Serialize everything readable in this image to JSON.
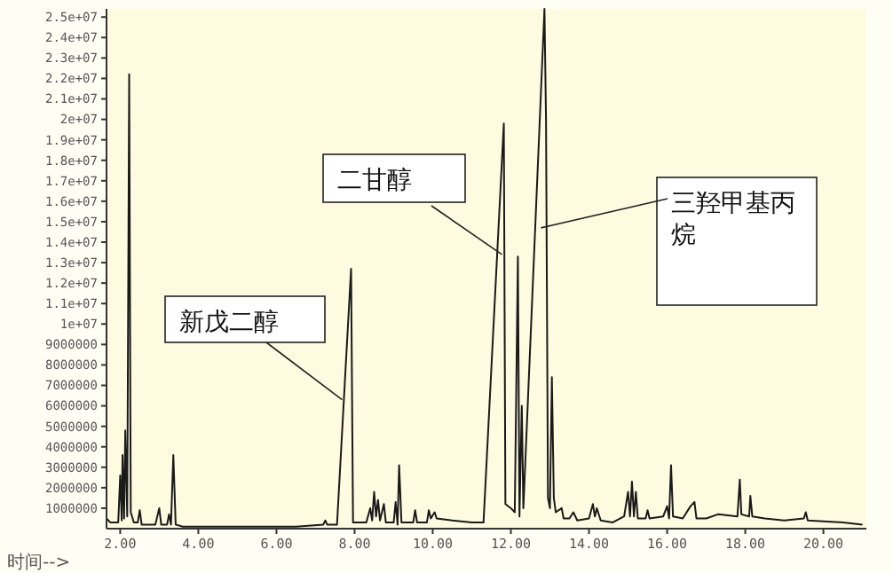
{
  "chart_data": {
    "type": "line",
    "xlabel": "时间-->",
    "xlim": [
      1.65,
      21.1
    ],
    "ylim": [
      0,
      25400000
    ],
    "xticks": [
      {
        "value": 2,
        "label": "2.00"
      },
      {
        "value": 4,
        "label": "4.00"
      },
      {
        "value": 6,
        "label": "6.00"
      },
      {
        "value": 8,
        "label": "8.00"
      },
      {
        "value": 10,
        "label": "10.00"
      },
      {
        "value": 12,
        "label": "12.00"
      },
      {
        "value": 14,
        "label": "14.00"
      },
      {
        "value": 16,
        "label": "16.00"
      },
      {
        "value": 18,
        "label": "18.00"
      },
      {
        "value": 20,
        "label": "20.00"
      }
    ],
    "yticks": [
      1000000,
      2000000,
      3000000,
      4000000,
      5000000,
      6000000,
      7000000,
      8000000,
      9000000,
      {
        "value": 10000000,
        "label": "1e+07"
      },
      {
        "value": 11000000,
        "label": "1.1e+07"
      },
      {
        "value": 12000000,
        "label": "1.2e+07"
      },
      {
        "value": 13000000,
        "label": "1.3e+07"
      },
      {
        "value": 14000000,
        "label": "1.4e+07"
      },
      {
        "value": 15000000,
        "label": "1.5e+07"
      },
      {
        "value": 16000000,
        "label": "1.6e+07"
      },
      {
        "value": 17000000,
        "label": "1.7e+07"
      },
      {
        "value": 18000000,
        "label": "1.8e+07"
      },
      {
        "value": 19000000,
        "label": "1.9e+07"
      },
      {
        "value": 20000000,
        "label": "2e+07"
      },
      {
        "value": 21000000,
        "label": "2.1e+07"
      },
      {
        "value": 22000000,
        "label": "2.2e+07"
      },
      {
        "value": 23000000,
        "label": "2.3e+07"
      },
      {
        "value": 24000000,
        "label": "2.4e+07"
      },
      {
        "value": 25000000,
        "label": "2.5e+07"
      }
    ],
    "grid": false,
    "marker": "none",
    "line_style": "solid",
    "annotations": [
      {
        "text": "新戊二醇",
        "x": 7.68,
        "y": 6300000
      },
      {
        "text": "二甘醇",
        "x": 11.77,
        "y": 13400000
      },
      {
        "text": "三羟甲基丙烷",
        "x": 12.77,
        "y": 14700000
      }
    ],
    "series": [
      {
        "color": "#1a1a1a",
        "x": [
          1.65,
          1.75,
          1.95,
          2.0,
          2.04,
          2.06,
          2.1,
          2.13,
          2.18,
          2.23,
          2.27,
          2.35,
          2.45,
          2.5,
          2.55,
          2.9,
          3.0,
          3.05,
          3.2,
          3.25,
          3.3,
          3.36,
          3.42,
          3.6,
          5.0,
          6.5,
          7.2,
          7.25,
          7.3,
          7.55,
          7.91,
          7.96,
          8.3,
          8.4,
          8.45,
          8.5,
          8.55,
          8.6,
          8.65,
          8.75,
          8.8,
          9.0,
          9.05,
          9.1,
          9.14,
          9.2,
          9.5,
          9.55,
          9.6,
          9.85,
          9.9,
          9.95,
          10.05,
          10.1,
          10.5,
          11.0,
          11.3,
          11.82,
          11.86,
          12.0,
          12.1,
          12.18,
          12.22,
          12.28,
          12.32,
          12.86,
          12.9,
          12.95,
          13.0,
          13.05,
          13.1,
          13.15,
          13.3,
          13.35,
          13.5,
          13.6,
          13.7,
          14.0,
          14.1,
          14.15,
          14.2,
          14.3,
          14.6,
          14.9,
          15.0,
          15.05,
          15.1,
          15.15,
          15.2,
          15.25,
          15.45,
          15.5,
          15.55,
          15.9,
          16.0,
          16.05,
          16.1,
          16.15,
          16.4,
          16.6,
          16.7,
          16.75,
          17.0,
          17.3,
          17.8,
          17.86,
          17.9,
          18.1,
          18.13,
          18.18,
          18.5,
          19.0,
          19.5,
          19.55,
          19.6,
          20.5,
          21.0
        ],
        "values": [
          500000,
          300000,
          300000,
          2600000,
          400000,
          3600000,
          500000,
          4800000,
          600000,
          22200000,
          800000,
          300000,
          300000,
          900000,
          200000,
          200000,
          1000000,
          200000,
          200000,
          700000,
          200000,
          3600000,
          200000,
          100000,
          100000,
          100000,
          200000,
          400000,
          200000,
          200000,
          12700000,
          300000,
          300000,
          1000000,
          400000,
          1800000,
          600000,
          1400000,
          400000,
          1200000,
          300000,
          300000,
          1300000,
          200000,
          3100000,
          300000,
          300000,
          900000,
          300000,
          300000,
          900000,
          500000,
          800000,
          500000,
          400000,
          300000,
          300000,
          19800000,
          1200000,
          1000000,
          800000,
          13300000,
          600000,
          6000000,
          1000000,
          25400000,
          20000000,
          1500000,
          1000000,
          7400000,
          1500000,
          800000,
          1000000,
          500000,
          500000,
          800000,
          400000,
          500000,
          1200000,
          600000,
          1000000,
          400000,
          300000,
          600000,
          1800000,
          600000,
          2300000,
          600000,
          1800000,
          500000,
          500000,
          900000,
          500000,
          600000,
          1100000,
          500000,
          3100000,
          600000,
          500000,
          1100000,
          1300000,
          500000,
          500000,
          700000,
          600000,
          2400000,
          700000,
          600000,
          1600000,
          600000,
          500000,
          400000,
          500000,
          800000,
          400000,
          300000,
          200000
        ]
      }
    ]
  }
}
